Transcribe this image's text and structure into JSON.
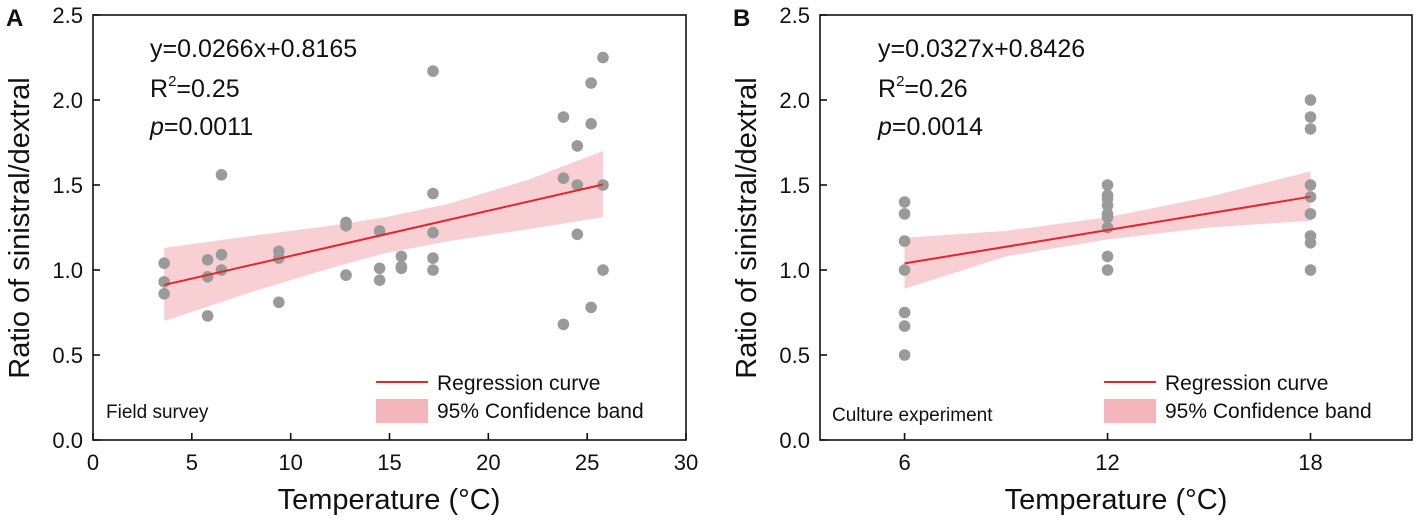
{
  "chart_data": [
    {
      "type": "scatter",
      "panel_letter": "A",
      "xlabel": "Temperature (°C)",
      "ylabel": "Ratio of sinistral/dextral",
      "xlim": [
        0,
        30
      ],
      "ylim": [
        0,
        2.5
      ],
      "xticks": [
        0,
        5,
        10,
        15,
        20,
        25,
        30
      ],
      "xtick_labels": [
        "0",
        "5",
        "10",
        "15",
        "20",
        "25",
        "30"
      ],
      "yticks": [
        0,
        0.5,
        1.0,
        1.5,
        2.0,
        2.5
      ],
      "ytick_labels": [
        "0.0",
        "0.5",
        "1.0",
        "1.5",
        "2.0",
        "2.5"
      ],
      "equation": "y=0.0266x+0.8165",
      "r2_base": "R",
      "r2_sup": "2",
      "r2_value": "=0.25",
      "p_symbol": "p",
      "p_value": "=0.0011",
      "site_label": "Field survey",
      "legend": {
        "line": "Regression curve",
        "band": "95% Confidence band"
      },
      "colors": {
        "points": "#9a9a9a",
        "line": "#e3262a",
        "band": "#f4b6bb"
      },
      "regression": {
        "slope": 0.0266,
        "intercept": 0.8165,
        "x_range": [
          3.6,
          25.8
        ]
      },
      "band": {
        "x": [
          3.6,
          8,
          12,
          14.8,
          18,
          22,
          25.8
        ],
        "lower": [
          0.7,
          0.87,
          1.01,
          1.1,
          1.17,
          1.24,
          1.31
        ],
        "upper": [
          1.13,
          1.2,
          1.26,
          1.31,
          1.39,
          1.53,
          1.7
        ]
      },
      "points": [
        {
          "x": 3.6,
          "y": 1.04
        },
        {
          "x": 3.6,
          "y": 0.93
        },
        {
          "x": 3.6,
          "y": 0.86
        },
        {
          "x": 5.8,
          "y": 1.06
        },
        {
          "x": 5.8,
          "y": 0.96
        },
        {
          "x": 5.8,
          "y": 0.73
        },
        {
          "x": 6.5,
          "y": 1.56
        },
        {
          "x": 6.5,
          "y": 1.09
        },
        {
          "x": 6.5,
          "y": 1.0
        },
        {
          "x": 9.4,
          "y": 1.11
        },
        {
          "x": 9.4,
          "y": 1.07
        },
        {
          "x": 9.4,
          "y": 0.81
        },
        {
          "x": 12.8,
          "y": 1.28
        },
        {
          "x": 12.8,
          "y": 1.26
        },
        {
          "x": 12.8,
          "y": 0.97
        },
        {
          "x": 14.5,
          "y": 1.23
        },
        {
          "x": 14.5,
          "y": 1.01
        },
        {
          "x": 14.5,
          "y": 0.94
        },
        {
          "x": 15.6,
          "y": 1.08
        },
        {
          "x": 15.6,
          "y": 1.01
        },
        {
          "x": 15.6,
          "y": 1.02
        },
        {
          "x": 17.2,
          "y": 2.17
        },
        {
          "x": 17.2,
          "y": 1.45
        },
        {
          "x": 17.2,
          "y": 1.22
        },
        {
          "x": 17.2,
          "y": 1.07
        },
        {
          "x": 17.2,
          "y": 1.0
        },
        {
          "x": 23.8,
          "y": 1.9
        },
        {
          "x": 23.8,
          "y": 1.54
        },
        {
          "x": 23.8,
          "y": 0.68
        },
        {
          "x": 24.5,
          "y": 1.73
        },
        {
          "x": 24.5,
          "y": 1.5
        },
        {
          "x": 24.5,
          "y": 1.21
        },
        {
          "x": 25.2,
          "y": 2.1
        },
        {
          "x": 25.2,
          "y": 1.86
        },
        {
          "x": 25.2,
          "y": 0.78
        },
        {
          "x": 25.8,
          "y": 2.25
        },
        {
          "x": 25.8,
          "y": 1.5
        },
        {
          "x": 25.8,
          "y": 1.0
        }
      ]
    },
    {
      "type": "scatter",
      "panel_letter": "B",
      "xlabel": "Temperature (°C)",
      "ylabel": "Ratio of sinistral/dextral",
      "xlim": [
        3.5,
        21
      ],
      "ylim": [
        0,
        2.5
      ],
      "xticks": [
        6,
        12,
        18
      ],
      "xtick_labels": [
        "6",
        "12",
        "18"
      ],
      "yticks": [
        0,
        0.5,
        1.0,
        1.5,
        2.0,
        2.5
      ],
      "ytick_labels": [
        "0.0",
        "0.5",
        "1.0",
        "1.5",
        "2.0",
        "2.5"
      ],
      "equation": "y=0.0327x+0.8426",
      "r2_base": "R",
      "r2_sup": "2",
      "r2_value": "=0.26",
      "p_symbol": "p",
      "p_value": "=0.0014",
      "site_label": "Culture experiment",
      "legend": {
        "line": "Regression curve",
        "band": "95% Confidence band"
      },
      "colors": {
        "points": "#9a9a9a",
        "line": "#e3262a",
        "band": "#f4b6bb"
      },
      "regression": {
        "slope": 0.0327,
        "intercept": 0.8426,
        "x_range": [
          6,
          18
        ]
      },
      "band": {
        "x": [
          6,
          9,
          12,
          15,
          18
        ],
        "lower": [
          0.89,
          1.08,
          1.18,
          1.25,
          1.29
        ],
        "upper": [
          1.19,
          1.23,
          1.31,
          1.43,
          1.58
        ]
      },
      "points": [
        {
          "x": 6,
          "y": 1.4
        },
        {
          "x": 6,
          "y": 1.33
        },
        {
          "x": 6,
          "y": 1.17
        },
        {
          "x": 6,
          "y": 1.0
        },
        {
          "x": 6,
          "y": 0.75
        },
        {
          "x": 6,
          "y": 0.67
        },
        {
          "x": 6,
          "y": 0.5
        },
        {
          "x": 12,
          "y": 1.5
        },
        {
          "x": 12,
          "y": 1.44
        },
        {
          "x": 12,
          "y": 1.42
        },
        {
          "x": 12,
          "y": 1.38
        },
        {
          "x": 12,
          "y": 1.33
        },
        {
          "x": 12,
          "y": 1.31
        },
        {
          "x": 12,
          "y": 1.25
        },
        {
          "x": 12,
          "y": 1.08
        },
        {
          "x": 12,
          "y": 1.0
        },
        {
          "x": 18,
          "y": 2.0
        },
        {
          "x": 18,
          "y": 1.9
        },
        {
          "x": 18,
          "y": 1.83
        },
        {
          "x": 18,
          "y": 1.5
        },
        {
          "x": 18,
          "y": 1.43
        },
        {
          "x": 18,
          "y": 1.33
        },
        {
          "x": 18,
          "y": 1.2
        },
        {
          "x": 18,
          "y": 1.16
        },
        {
          "x": 18,
          "y": 1.0
        }
      ]
    }
  ]
}
